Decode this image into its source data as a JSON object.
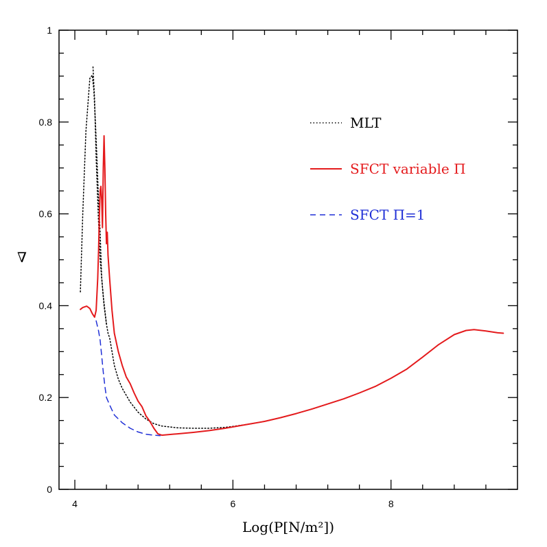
{
  "chart_data": {
    "type": "line",
    "title": "",
    "xlabel": "Log(P[N/m²])",
    "ylabel": "∇",
    "xlim": [
      3.8,
      9.6
    ],
    "ylim": [
      0,
      1
    ],
    "xticks": [
      4,
      6,
      8
    ],
    "xtick_labels": [
      "4",
      "6",
      "8"
    ],
    "yticks": [
      0,
      0.2,
      0.4,
      0.6,
      0.8,
      1
    ],
    "ytick_labels": [
      "0",
      "0.2",
      "0.4",
      "0.6",
      "0.8",
      "1"
    ],
    "grid": false,
    "legend_placement": "top-right",
    "series": [
      {
        "name": "MLT",
        "color": "#000000",
        "style": "dotted",
        "points": [
          [
            4.07,
            0.43
          ],
          [
            4.1,
            0.6
          ],
          [
            4.14,
            0.78
          ],
          [
            4.19,
            0.895
          ],
          [
            4.22,
            0.902
          ],
          [
            4.24,
            0.87
          ],
          [
            4.26,
            0.8
          ],
          [
            4.28,
            0.72
          ],
          [
            4.3,
            0.63
          ],
          [
            4.32,
            0.56
          ],
          [
            4.34,
            0.46
          ],
          [
            4.37,
            0.4
          ],
          [
            4.4,
            0.36
          ],
          [
            4.42,
            0.34
          ],
          [
            4.44,
            0.33
          ],
          [
            4.47,
            0.3
          ],
          [
            4.5,
            0.27
          ],
          [
            4.55,
            0.24
          ],
          [
            4.6,
            0.22
          ],
          [
            4.7,
            0.19
          ],
          [
            4.8,
            0.168
          ],
          [
            4.9,
            0.153
          ],
          [
            5.0,
            0.143
          ],
          [
            5.1,
            0.138
          ],
          [
            5.3,
            0.134
          ],
          [
            5.5,
            0.133
          ],
          [
            5.7,
            0.133
          ],
          [
            5.9,
            0.135
          ],
          [
            6.0,
            0.137
          ],
          [
            6.2,
            0.142
          ],
          [
            6.4,
            0.148
          ],
          [
            6.6,
            0.156
          ],
          [
            6.8,
            0.165
          ],
          [
            7.0,
            0.175
          ],
          [
            7.2,
            0.186
          ],
          [
            7.4,
            0.197
          ],
          [
            7.6,
            0.21
          ],
          [
            7.8,
            0.224
          ],
          [
            8.0,
            0.242
          ]
        ]
      },
      {
        "name": "MLT",
        "color": "#000000",
        "style": "dotted",
        "points": [
          [
            4.23,
            0.92
          ],
          [
            4.25,
            0.85
          ],
          [
            4.27,
            0.72
          ],
          [
            4.3,
            0.58
          ],
          [
            4.32,
            0.5
          ],
          [
            4.34,
            0.46
          ],
          [
            4.36,
            0.42
          ],
          [
            4.38,
            0.39
          ],
          [
            4.4,
            0.36
          ]
        ]
      },
      {
        "name": "SFCT variable Π",
        "color": "#e41a1c",
        "style": "solid",
        "points": [
          [
            4.07,
            0.392
          ],
          [
            4.1,
            0.396
          ],
          [
            4.15,
            0.399
          ],
          [
            4.19,
            0.394
          ],
          [
            4.22,
            0.383
          ],
          [
            4.25,
            0.375
          ],
          [
            4.27,
            0.39
          ],
          [
            4.29,
            0.46
          ],
          [
            4.3,
            0.52
          ],
          [
            4.31,
            0.59
          ],
          [
            4.32,
            0.65
          ],
          [
            4.33,
            0.66
          ],
          [
            4.34,
            0.63
          ],
          [
            4.35,
            0.57
          ],
          [
            4.36,
            0.7
          ],
          [
            4.37,
            0.77
          ],
          [
            4.38,
            0.7
          ],
          [
            4.39,
            0.6
          ],
          [
            4.4,
            0.535
          ],
          [
            4.41,
            0.56
          ],
          [
            4.42,
            0.51
          ],
          [
            4.44,
            0.46
          ],
          [
            4.47,
            0.39
          ],
          [
            4.5,
            0.34
          ],
          [
            4.55,
            0.3
          ],
          [
            4.6,
            0.27
          ],
          [
            4.65,
            0.245
          ],
          [
            4.7,
            0.23
          ],
          [
            4.75,
            0.21
          ],
          [
            4.8,
            0.192
          ],
          [
            4.85,
            0.18
          ],
          [
            4.9,
            0.16
          ],
          [
            4.95,
            0.148
          ],
          [
            5.0,
            0.133
          ],
          [
            5.05,
            0.121
          ],
          [
            5.1,
            0.118
          ],
          [
            5.3,
            0.121
          ],
          [
            5.5,
            0.124
          ],
          [
            5.7,
            0.128
          ],
          [
            5.9,
            0.133
          ],
          [
            6.0,
            0.136
          ],
          [
            6.2,
            0.142
          ],
          [
            6.4,
            0.148
          ],
          [
            6.6,
            0.156
          ],
          [
            6.8,
            0.165
          ],
          [
            7.0,
            0.175
          ],
          [
            7.2,
            0.186
          ],
          [
            7.4,
            0.197
          ],
          [
            7.6,
            0.21
          ],
          [
            7.8,
            0.224
          ],
          [
            8.0,
            0.242
          ],
          [
            8.2,
            0.262
          ],
          [
            8.4,
            0.288
          ],
          [
            8.6,
            0.315
          ],
          [
            8.8,
            0.337
          ],
          [
            8.95,
            0.346
          ],
          [
            9.05,
            0.348
          ],
          [
            9.2,
            0.345
          ],
          [
            9.35,
            0.341
          ],
          [
            9.42,
            0.34
          ]
        ]
      },
      {
        "name": "SFCT Π=1",
        "color": "#1f2fd6",
        "style": "dashed",
        "points": [
          [
            4.27,
            0.367
          ],
          [
            4.3,
            0.345
          ],
          [
            4.32,
            0.325
          ],
          [
            4.34,
            0.29
          ],
          [
            4.36,
            0.255
          ],
          [
            4.38,
            0.225
          ],
          [
            4.4,
            0.2
          ],
          [
            4.45,
            0.18
          ],
          [
            4.5,
            0.162
          ],
          [
            4.6,
            0.145
          ],
          [
            4.7,
            0.133
          ],
          [
            4.8,
            0.125
          ],
          [
            4.9,
            0.12
          ],
          [
            5.0,
            0.118
          ],
          [
            5.08,
            0.117
          ]
        ]
      }
    ]
  },
  "legend": {
    "items": [
      {
        "label": "MLT",
        "color": "#000000",
        "style": "dotted"
      },
      {
        "label": "SFCT variable Π",
        "color": "#e41a1c",
        "style": "solid"
      },
      {
        "label": "SFCT Π=1",
        "color": "#1f2fd6",
        "style": "dashed"
      }
    ]
  }
}
